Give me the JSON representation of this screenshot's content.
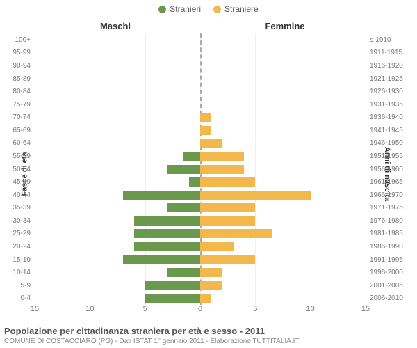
{
  "legend": {
    "male": {
      "label": "Stranieri",
      "color": "#6a994e"
    },
    "female": {
      "label": "Straniere",
      "color": "#f2b84b"
    }
  },
  "side_titles": {
    "left": "Maschi",
    "right": "Femmine"
  },
  "y_axis_titles": {
    "left": "Fasce di età",
    "right": "Anni di nascita"
  },
  "chart": {
    "type": "population-pyramid",
    "xmax": 15,
    "xticks": [
      15,
      10,
      5,
      0,
      5,
      10,
      15
    ],
    "grid_color": "#eeeeee",
    "center_dash_color": "#aaaaaa",
    "background_color": "#ffffff",
    "male_color": "#6a994e",
    "female_color": "#f2b84b",
    "rows": [
      {
        "age": "100+",
        "birth": "≤ 1910",
        "m": 0,
        "f": 0
      },
      {
        "age": "95-99",
        "birth": "1911-1915",
        "m": 0,
        "f": 0
      },
      {
        "age": "90-94",
        "birth": "1916-1920",
        "m": 0,
        "f": 0
      },
      {
        "age": "85-89",
        "birth": "1921-1925",
        "m": 0,
        "f": 0
      },
      {
        "age": "80-84",
        "birth": "1926-1930",
        "m": 0,
        "f": 0
      },
      {
        "age": "75-79",
        "birth": "1931-1935",
        "m": 0,
        "f": 0
      },
      {
        "age": "70-74",
        "birth": "1936-1940",
        "m": 0,
        "f": 1
      },
      {
        "age": "65-69",
        "birth": "1941-1945",
        "m": 0,
        "f": 1
      },
      {
        "age": "60-64",
        "birth": "1946-1950",
        "m": 0,
        "f": 2
      },
      {
        "age": "55-59",
        "birth": "1951-1955",
        "m": 1.5,
        "f": 4
      },
      {
        "age": "50-54",
        "birth": "1956-1960",
        "m": 3,
        "f": 4
      },
      {
        "age": "45-49",
        "birth": "1961-1965",
        "m": 1,
        "f": 5
      },
      {
        "age": "40-44",
        "birth": "1966-1970",
        "m": 7,
        "f": 10
      },
      {
        "age": "35-39",
        "birth": "1971-1975",
        "m": 3,
        "f": 5
      },
      {
        "age": "30-34",
        "birth": "1976-1980",
        "m": 6,
        "f": 5
      },
      {
        "age": "25-29",
        "birth": "1981-1985",
        "m": 6,
        "f": 6.5
      },
      {
        "age": "20-24",
        "birth": "1986-1990",
        "m": 6,
        "f": 3
      },
      {
        "age": "15-19",
        "birth": "1991-1995",
        "m": 7,
        "f": 5
      },
      {
        "age": "10-14",
        "birth": "1996-2000",
        "m": 3,
        "f": 2
      },
      {
        "age": "5-9",
        "birth": "2001-2005",
        "m": 5,
        "f": 2
      },
      {
        "age": "0-4",
        "birth": "2006-2010",
        "m": 5,
        "f": 1
      }
    ]
  },
  "footer": {
    "title": "Popolazione per cittadinanza straniera per età e sesso - 2011",
    "subtitle": "COMUNE DI COSTACCIARO (PG) - Dati ISTAT 1° gennaio 2011 - Elaborazione TUTTITALIA.IT"
  }
}
